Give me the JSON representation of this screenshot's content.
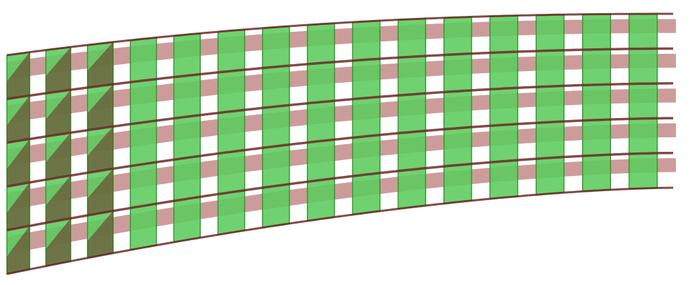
{
  "figure": {
    "description_kind": "3d-curved-shell-mesh",
    "columns": 15,
    "layers": 5,
    "colors": {
      "column_fill": "#5ccb5c",
      "column_edge": "#2f9a2f",
      "layer_band": "#a24a48",
      "layer_band_dark": "#6b2a26",
      "background": "#ffffff"
    }
  }
}
